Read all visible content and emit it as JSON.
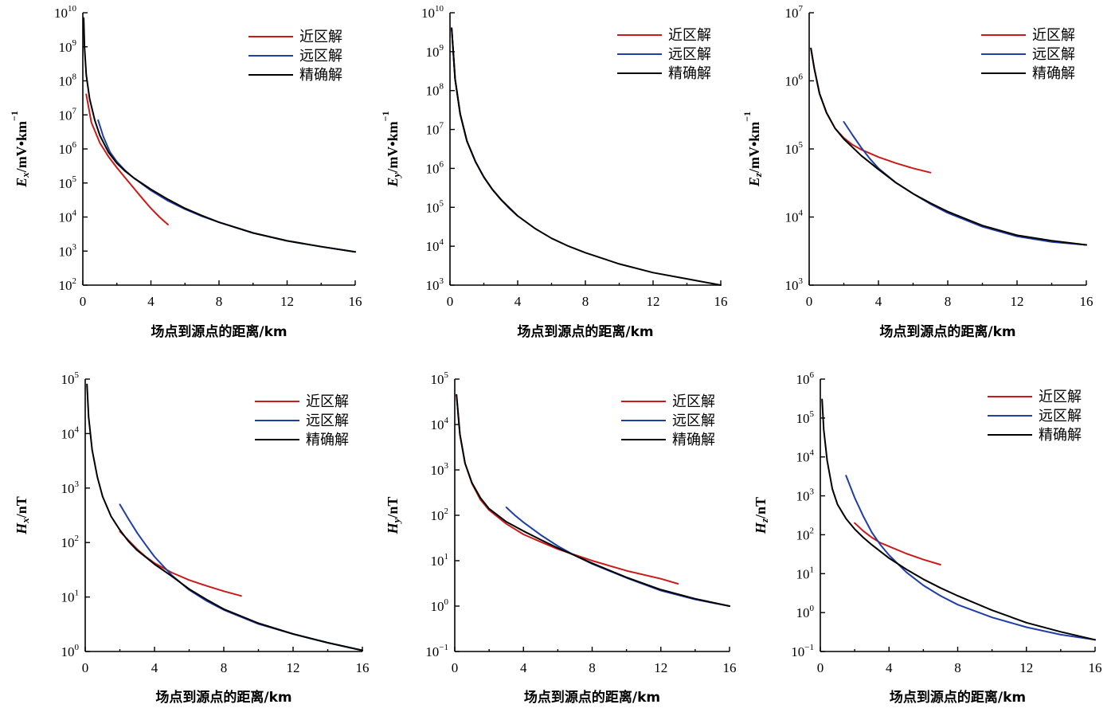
{
  "chart_data": [
    {
      "type": "line",
      "panel": "Ex",
      "xlabel": "场点到源点的距离/km",
      "ylabel": {
        "main": "E",
        "sub": "x",
        "unit": "/mV•km",
        "unitsup": "−1"
      },
      "xlim": [
        0,
        16
      ],
      "ylim": [
        100,
        10000000000
      ],
      "yscale": "log",
      "xticks": [
        0,
        4,
        8,
        12,
        16
      ],
      "yticks": [
        {
          "base": "10",
          "exp": "2",
          "v": 100.0
        },
        {
          "base": "10",
          "exp": "3",
          "v": 1000.0
        },
        {
          "base": "10",
          "exp": "4",
          "v": 10000.0
        },
        {
          "base": "10",
          "exp": "5",
          "v": 100000.0
        },
        {
          "base": "10",
          "exp": "6",
          "v": 1000000.0
        },
        {
          "base": "10",
          "exp": "7",
          "v": 10000000.0
        },
        {
          "base": "10",
          "exp": "8",
          "v": 100000000.0
        },
        {
          "base": "10",
          "exp": "9",
          "v": 1000000000.0
        },
        {
          "base": "10",
          "exp": "10",
          "v": 10000000000.0
        }
      ],
      "legend": "top-right",
      "series": [
        {
          "name": "近区解",
          "color": "#cc1a1a",
          "x": [
            0.2,
            0.5,
            1,
            1.5,
            2,
            2.5,
            3,
            3.5,
            4,
            4.5,
            5
          ],
          "y": [
            40000000.0,
            6000000.0,
            1500000.0,
            600000.0,
            280000.0,
            140000.0,
            70000.0,
            35000.0,
            18000.0,
            10000.0,
            6000.0
          ]
        },
        {
          "name": "远区解",
          "color": "#1f3ea8",
          "x": [
            0.9,
            1.2,
            1.6,
            2,
            2.5,
            3,
            4,
            5,
            6,
            7,
            8,
            10,
            12,
            14,
            16
          ],
          "y": [
            7000000.0,
            2300000.0,
            800000.0,
            420000.0,
            230000.0,
            140000.0,
            60000.0,
            30000.0,
            17000.0,
            10500.0,
            7000.0,
            3400.0,
            2000.0,
            1350.0,
            950.0
          ]
        },
        {
          "name": "精确解",
          "color": "#000000",
          "x": [
            0.05,
            0.1,
            0.2,
            0.4,
            0.7,
            1,
            1.5,
            2,
            2.5,
            3,
            4,
            5,
            6,
            7,
            8,
            10,
            12,
            14,
            16
          ],
          "y": [
            7000000000.0,
            1000000000.0,
            150000000.0,
            30000000.0,
            7000000.0,
            2500000.0,
            800000.0,
            380000.0,
            220000.0,
            140000.0,
            65000.0,
            33000.0,
            18000.0,
            11000.0,
            7000.0,
            3400.0,
            2000.0,
            1350.0,
            950.0
          ]
        }
      ]
    },
    {
      "type": "line",
      "panel": "Ey",
      "xlabel": "场点到源点的距离/km",
      "ylabel": {
        "main": "E",
        "sub": "y",
        "unit": "/mV•km",
        "unitsup": "−1"
      },
      "xlim": [
        0,
        16
      ],
      "ylim": [
        1000,
        10000000000
      ],
      "yscale": "log",
      "xticks": [
        0,
        4,
        8,
        12,
        16
      ],
      "yticks": [
        {
          "base": "10",
          "exp": "3",
          "v": 1000.0
        },
        {
          "base": "10",
          "exp": "4",
          "v": 10000.0
        },
        {
          "base": "10",
          "exp": "5",
          "v": 100000.0
        },
        {
          "base": "10",
          "exp": "6",
          "v": 1000000.0
        },
        {
          "base": "10",
          "exp": "7",
          "v": 10000000.0
        },
        {
          "base": "10",
          "exp": "8",
          "v": 100000000.0
        },
        {
          "base": "10",
          "exp": "9",
          "v": 1000000000.0
        },
        {
          "base": "10",
          "exp": "10",
          "v": 10000000000.0
        }
      ],
      "legend": "top-right",
      "series": [
        {
          "name": "近区解",
          "color": "#cc1a1a",
          "x": [
            0.1,
            0.3,
            0.6,
            1,
            1.5,
            2,
            2.5,
            3,
            3.5,
            4
          ],
          "y": [
            4000000000.0,
            200000000.0,
            25000000.0,
            5000000.0,
            1500000.0,
            600000.0,
            290000.0,
            160000.0,
            95000.0,
            60000.0
          ]
        },
        {
          "name": "远区解",
          "color": "#1f3ea8",
          "x": [
            0.1,
            0.3,
            0.6,
            1,
            1.5,
            2,
            2.5,
            3,
            3.5,
            4
          ],
          "y": [
            4000000000.0,
            200000000.0,
            25000000.0,
            5000000.0,
            1500000.0,
            600000.0,
            290000.0,
            160000.0,
            95000.0,
            60000.0
          ]
        },
        {
          "name": "精确解",
          "color": "#000000",
          "x": [
            0.1,
            0.3,
            0.6,
            1,
            1.5,
            2,
            2.5,
            3,
            4,
            5,
            6,
            7,
            8,
            10,
            12,
            14,
            16
          ],
          "y": [
            4000000000.0,
            200000000.0,
            25000000.0,
            5000000.0,
            1500000.0,
            600000.0,
            290000.0,
            160000.0,
            60000.0,
            29000.0,
            16000.0,
            10000.0,
            6800.0,
            3500.0,
            2100.0,
            1450.0,
            1000.0
          ]
        }
      ]
    },
    {
      "type": "line",
      "panel": "Ez",
      "xlabel": "场点到源点的距离/km",
      "ylabel": {
        "main": "E",
        "sub": "z",
        "unit": "/mV•km",
        "unitsup": "−1"
      },
      "xlim": [
        0,
        16
      ],
      "ylim": [
        1000,
        10000000
      ],
      "yscale": "log",
      "xticks": [
        0,
        4,
        8,
        12,
        16
      ],
      "yticks": [
        {
          "base": "10",
          "exp": "3",
          "v": 1000.0
        },
        {
          "base": "10",
          "exp": "4",
          "v": 10000.0
        },
        {
          "base": "10",
          "exp": "5",
          "v": 100000.0
        },
        {
          "base": "10",
          "exp": "6",
          "v": 1000000.0
        },
        {
          "base": "10",
          "exp": "7",
          "v": 10000000.0
        }
      ],
      "legend": "top-right",
      "series": [
        {
          "name": "近区解",
          "color": "#cc1a1a",
          "x": [
            0.1,
            0.3,
            0.6,
            1,
            1.5,
            2,
            2.5,
            3,
            4,
            5,
            6,
            7
          ],
          "y": [
            3000000.0,
            1500000.0,
            650000.0,
            340000.0,
            200000.0,
            145000.0,
            115000.0,
            98000.0,
            76000.0,
            62000.0,
            52000.0,
            45000.0
          ]
        },
        {
          "name": "远区解",
          "color": "#1f3ea8",
          "x": [
            2,
            2.5,
            3,
            3.5,
            4,
            5,
            6,
            7,
            8,
            10,
            12,
            14,
            16
          ],
          "y": [
            250000.0,
            160000.0,
            105000.0,
            72000.0,
            52000.0,
            32000.0,
            22000.0,
            15500.0,
            11500.0,
            7200.0,
            5200.0,
            4300.0,
            3900.0
          ]
        },
        {
          "name": "精确解",
          "color": "#000000",
          "x": [
            0.1,
            0.3,
            0.6,
            1,
            1.5,
            2,
            3,
            4,
            5,
            6,
            7,
            8,
            10,
            12,
            14,
            16
          ],
          "y": [
            3000000.0,
            1500000.0,
            650000.0,
            340000.0,
            200000.0,
            140000.0,
            80000.0,
            50000.0,
            32000.0,
            22000.0,
            16000.0,
            12000.0,
            7500.0,
            5400.0,
            4500.0,
            3900.0
          ]
        }
      ]
    },
    {
      "type": "line",
      "panel": "Hx",
      "xlabel": "场点到源点的距离/km",
      "ylabel": {
        "main": "H",
        "sub": "x",
        "unit": "/nT",
        "unitsup": ""
      },
      "xlim": [
        0,
        16
      ],
      "ylim": [
        1,
        100000
      ],
      "yscale": "log",
      "xticks": [
        0,
        4,
        8,
        12,
        16
      ],
      "yticks": [
        {
          "base": "10",
          "exp": "0",
          "v": 1
        },
        {
          "base": "10",
          "exp": "1",
          "v": 10
        },
        {
          "base": "10",
          "exp": "2",
          "v": 100
        },
        {
          "base": "10",
          "exp": "3",
          "v": 1000
        },
        {
          "base": "10",
          "exp": "4",
          "v": 10000
        },
        {
          "base": "10",
          "exp": "5",
          "v": 100000
        }
      ],
      "legend": "top-right",
      "series": [
        {
          "name": "近区解",
          "color": "#cc1a1a",
          "x": [
            2,
            2.5,
            3,
            3.5,
            4,
            5,
            6,
            7,
            8,
            9
          ],
          "y": [
            160,
            110,
            75,
            55,
            42,
            28,
            20.5,
            16,
            12.8,
            10.5
          ]
        },
        {
          "name": "远区解",
          "color": "#1f3ea8",
          "x": [
            2,
            2.5,
            3,
            3.5,
            4,
            5,
            6,
            7,
            8,
            10,
            12,
            14,
            16
          ],
          "y": [
            500,
            270,
            150,
            90,
            55,
            25,
            13.5,
            8.5,
            5.8,
            3.2,
            2.1,
            1.45,
            1.05
          ]
        },
        {
          "name": "精确解",
          "color": "#000000",
          "x": [
            0.1,
            0.2,
            0.4,
            0.7,
            1,
            1.5,
            2,
            2.5,
            3,
            4,
            5,
            6,
            7,
            8,
            10,
            12,
            14,
            16
          ],
          "y": [
            80000.0,
            20000.0,
            5000.0,
            1600.0,
            700,
            300,
            170,
            105,
            72,
            40,
            24,
            14,
            9,
            6,
            3.3,
            2.1,
            1.45,
            1.05
          ]
        }
      ]
    },
    {
      "type": "line",
      "panel": "Hy",
      "xlabel": "场点到源点的距离/km",
      "ylabel": {
        "main": "H",
        "sub": "y",
        "unit": "/nT",
        "unitsup": ""
      },
      "xlim": [
        0,
        16
      ],
      "ylim": [
        0.1,
        100000
      ],
      "yscale": "log",
      "xticks": [
        0,
        4,
        8,
        12,
        16
      ],
      "yticks": [
        {
          "base": "10",
          "exp": "−1",
          "v": 0.1
        },
        {
          "base": "10",
          "exp": "0",
          "v": 1
        },
        {
          "base": "10",
          "exp": "1",
          "v": 10
        },
        {
          "base": "10",
          "exp": "2",
          "v": 100
        },
        {
          "base": "10",
          "exp": "3",
          "v": 1000
        },
        {
          "base": "10",
          "exp": "4",
          "v": 10000
        },
        {
          "base": "10",
          "exp": "5",
          "v": 100000
        }
      ],
      "legend": "top-right",
      "series": [
        {
          "name": "近区解",
          "color": "#cc1a1a",
          "x": [
            0.1,
            0.3,
            0.6,
            1,
            1.5,
            2,
            3,
            4,
            5,
            6,
            8,
            10,
            12,
            13
          ],
          "y": [
            45000.0,
            6000.0,
            1400.0,
            500,
            220,
            130,
            65,
            38,
            26,
            18,
            10,
            6,
            4,
            3.1
          ]
        },
        {
          "name": "远区解",
          "color": "#1f3ea8",
          "x": [
            3,
            3.5,
            4,
            5,
            6,
            7,
            8,
            10,
            12,
            14,
            16
          ],
          "y": [
            150,
            100,
            70,
            37,
            21,
            13,
            8.5,
            4.2,
            2.2,
            1.4,
            1.0
          ]
        },
        {
          "name": "精确解",
          "color": "#000000",
          "x": [
            0.1,
            0.3,
            0.6,
            1,
            1.5,
            2,
            3,
            4,
            5,
            6,
            7,
            8,
            10,
            12,
            14,
            16
          ],
          "y": [
            45000.0,
            6000.0,
            1400.0,
            520,
            240,
            140,
            72,
            45,
            29,
            19,
            13,
            8.8,
            4.3,
            2.3,
            1.45,
            1.0
          ]
        }
      ]
    },
    {
      "type": "line",
      "panel": "Hz",
      "xlabel": "场点到源点的距离/km",
      "ylabel": {
        "main": "H",
        "sub": "z",
        "unit": "/nT",
        "unitsup": ""
      },
      "xlim": [
        0,
        16
      ],
      "ylim": [
        0.1,
        1000000
      ],
      "yscale": "log",
      "xticks": [
        0,
        4,
        8,
        12,
        16
      ],
      "yticks": [
        {
          "base": "10",
          "exp": "−1",
          "v": 0.1
        },
        {
          "base": "10",
          "exp": "0",
          "v": 1
        },
        {
          "base": "10",
          "exp": "1",
          "v": 10
        },
        {
          "base": "10",
          "exp": "2",
          "v": 100
        },
        {
          "base": "10",
          "exp": "3",
          "v": 1000
        },
        {
          "base": "10",
          "exp": "4",
          "v": 10000
        },
        {
          "base": "10",
          "exp": "5",
          "v": 100000
        },
        {
          "base": "10",
          "exp": "6",
          "v": 1000000
        }
      ],
      "legend": "top-right",
      "series": [
        {
          "name": "近区解",
          "color": "#cc1a1a",
          "x": [
            2,
            2.5,
            3,
            3.5,
            4,
            5,
            6,
            7
          ],
          "y": [
            200,
            125,
            85,
            62,
            50,
            33,
            23,
            17
          ]
        },
        {
          "name": "远区解",
          "color": "#1f3ea8",
          "x": [
            1.5,
            2,
            2.5,
            3,
            3.5,
            4,
            5,
            6,
            7,
            8,
            10,
            12,
            14,
            16
          ],
          "y": [
            3300,
            900,
            300,
            115,
            55,
            30,
            11,
            5,
            2.7,
            1.6,
            0.75,
            0.42,
            0.27,
            0.2
          ]
        },
        {
          "name": "精确解",
          "color": "#000000",
          "x": [
            0.1,
            0.2,
            0.4,
            0.7,
            1,
            1.5,
            2,
            2.5,
            3,
            4,
            5,
            6,
            7,
            8,
            10,
            12,
            14,
            16
          ],
          "y": [
            300000.0,
            50000.0,
            8000.0,
            1500.0,
            600,
            260,
            140,
            85,
            55,
            25,
            13,
            7.2,
            4.3,
            2.7,
            1.15,
            0.55,
            0.32,
            0.2
          ]
        }
      ]
    }
  ]
}
